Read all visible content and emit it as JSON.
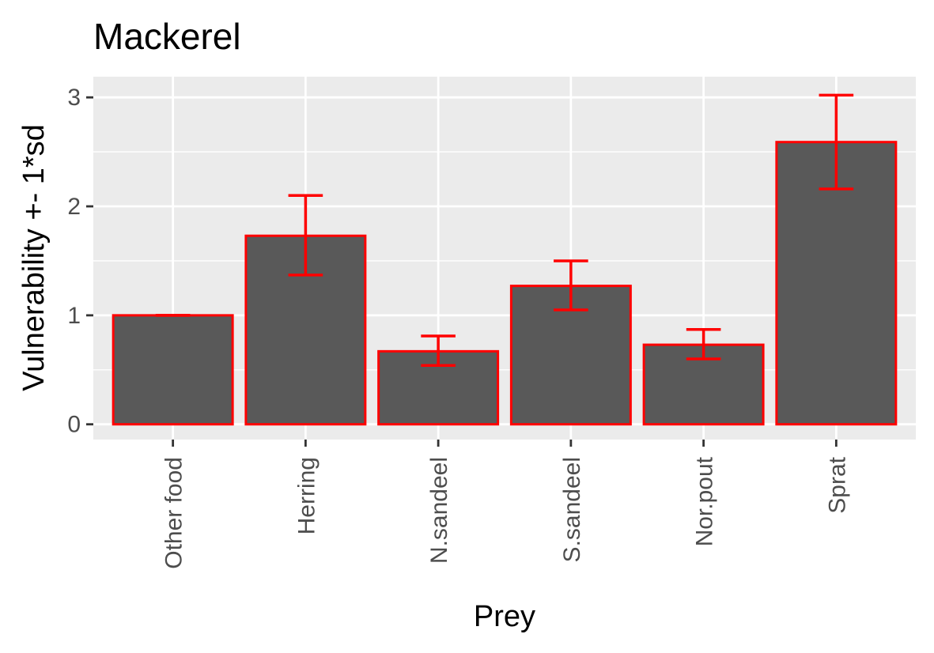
{
  "chart_data": {
    "type": "bar",
    "title": "Mackerel",
    "xlabel": "Prey",
    "ylabel": "Vulnerability +- 1*sd",
    "categories": [
      "Other food",
      "Herring",
      "N.sandeel",
      "S.sandeel",
      "Nor.pout",
      "Sprat"
    ],
    "values": [
      1.0,
      1.73,
      0.67,
      1.27,
      0.73,
      2.59
    ],
    "error_low": [
      1.0,
      1.37,
      0.54,
      1.05,
      0.6,
      2.16
    ],
    "error_high": [
      1.0,
      2.1,
      0.81,
      1.5,
      0.87,
      3.02
    ],
    "y_ticks": [
      0,
      1,
      2,
      3
    ],
    "ylim": [
      -0.14,
      3.19
    ],
    "grid": true,
    "legend": "none",
    "colors": {
      "bar_fill": "#595959",
      "bar_outline": "#ff0000",
      "error_bar": "#ff0000",
      "panel_background": "#ebebeb",
      "gridline": "#ffffff"
    }
  }
}
